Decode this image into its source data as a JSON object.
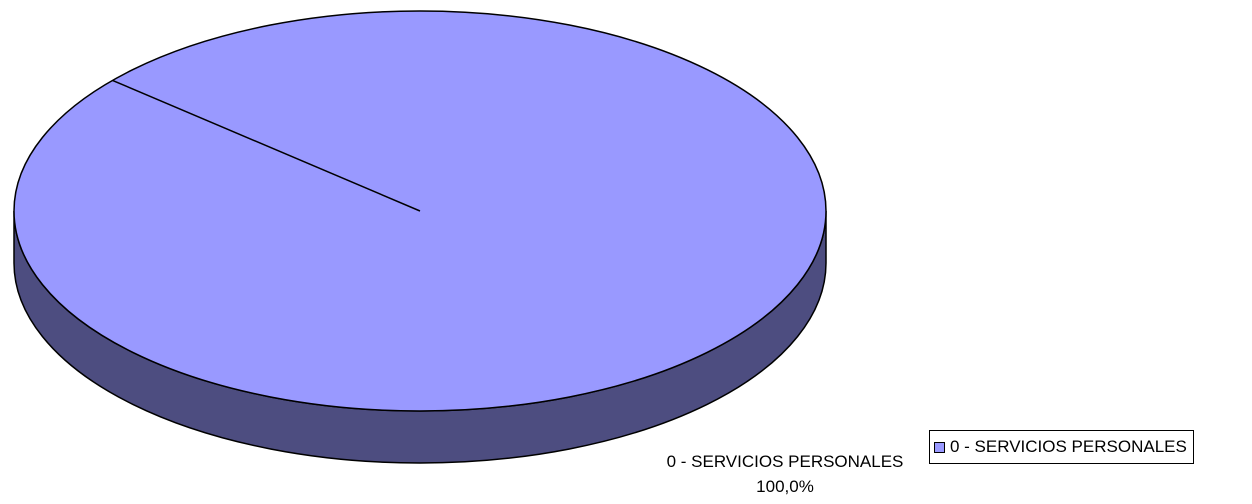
{
  "chart_data": {
    "type": "pie",
    "title": "",
    "slices": [
      {
        "label": "0 - SERVICIOS PERSONALES",
        "value": 100.0,
        "percent_label": "100,0%"
      }
    ],
    "legend": {
      "placement": "bottom-right",
      "entries": [
        "0 - SERVICIOS PERSONALES"
      ]
    },
    "colors": {
      "top": "#9999ff",
      "side": "#4d4d80",
      "outline": "#000000"
    },
    "three_d": true
  }
}
